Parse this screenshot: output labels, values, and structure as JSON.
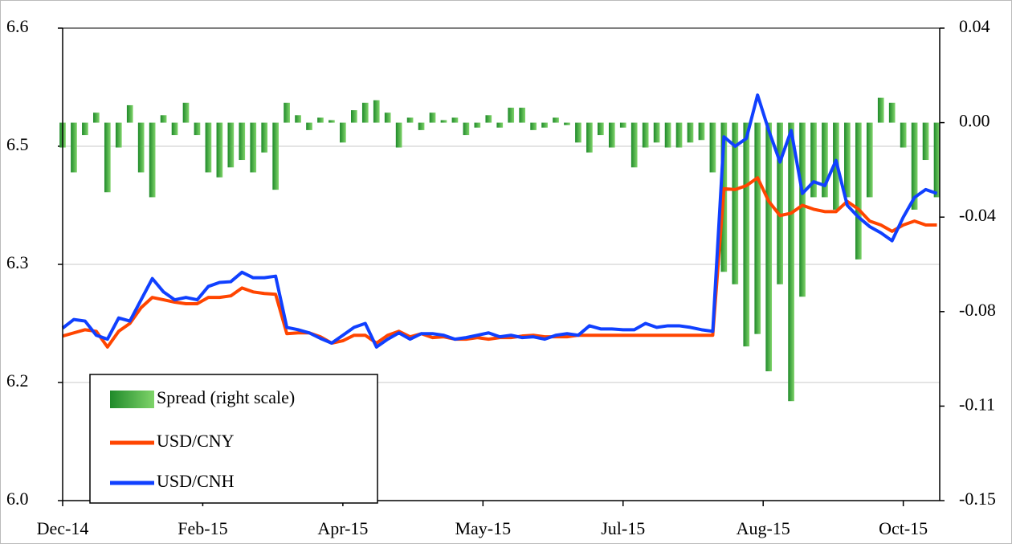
{
  "chart_data": {
    "type": "combo",
    "x": [
      0,
      4,
      8,
      12,
      16,
      20,
      24,
      28,
      32,
      36,
      40,
      44,
      48,
      52,
      56,
      60,
      64,
      68,
      72,
      76,
      80,
      84,
      88,
      92,
      96,
      100,
      104,
      108,
      112,
      116,
      120,
      124,
      128,
      132,
      136,
      140,
      144,
      148,
      152,
      156,
      160,
      164,
      168,
      172,
      176,
      180,
      184,
      188,
      192,
      196,
      200,
      204,
      208,
      212,
      216,
      220,
      224,
      228,
      232,
      236,
      240,
      244,
      248,
      252,
      256,
      260,
      264,
      268,
      272,
      276,
      280,
      284,
      288,
      292,
      296,
      300,
      304,
      308,
      312
    ],
    "xlim": [
      0,
      313
    ],
    "xticks": [
      {
        "value": 0,
        "label": "Dec-14"
      },
      {
        "value": 50,
        "label": "Feb-15"
      },
      {
        "value": 100,
        "label": "Apr-15"
      },
      {
        "value": 150,
        "label": "May-15"
      },
      {
        "value": 200,
        "label": "Jul-15"
      },
      {
        "value": 250,
        "label": "Aug-15"
      },
      {
        "value": 300,
        "label": "Oct-15"
      }
    ],
    "ylim": [
      6.0,
      6.6
    ],
    "yticks": [
      {
        "value": 6.0,
        "label": "6.0"
      },
      {
        "value": 6.15,
        "label": "6.2"
      },
      6.3,
      {
        "value": 6.45,
        "label": "6.5"
      },
      6.6
    ],
    "y2lim": [
      -0.152,
      0.038
    ],
    "y2ticks": [
      {
        "value": -0.152,
        "label": "-0.15"
      },
      {
        "value": -0.114,
        "label": "-0.11"
      },
      {
        "value": -0.076,
        "label": "-0.08"
      },
      {
        "value": -0.038,
        "label": "-0.04"
      },
      {
        "value": 0,
        "label": "0.00"
      },
      {
        "value": 0.038,
        "label": "0.04"
      }
    ],
    "grid": true,
    "legend": "lower left",
    "series": [
      {
        "name": "Spread (right scale)",
        "type": "bar",
        "axis": "y2",
        "color": "#3cae3c",
        "values": [
          -0.01,
          -0.02,
          -0.005,
          0.004,
          -0.028,
          -0.01,
          0.007,
          -0.02,
          -0.03,
          0.003,
          -0.005,
          0.008,
          -0.005,
          -0.02,
          -0.022,
          -0.018,
          -0.015,
          -0.02,
          -0.012,
          -0.027,
          0.008,
          0.003,
          -0.003,
          0.002,
          0.001,
          -0.008,
          0.005,
          0.008,
          0.009,
          0.004,
          -0.01,
          0.002,
          -0.003,
          0.004,
          0.001,
          0.002,
          -0.005,
          -0.002,
          0.003,
          -0.002,
          0.006,
          0.006,
          -0.003,
          -0.002,
          0.002,
          -0.001,
          -0.008,
          -0.012,
          -0.005,
          -0.01,
          -0.002,
          -0.018,
          -0.01,
          -0.008,
          -0.01,
          -0.01,
          -0.008,
          -0.007,
          -0.02,
          -0.06,
          -0.065,
          -0.09,
          -0.085,
          -0.1,
          -0.065,
          -0.112,
          -0.07,
          -0.03,
          -0.03,
          -0.035,
          -0.03,
          -0.055,
          -0.03,
          0.01,
          0.008,
          -0.01,
          -0.035,
          -0.015,
          -0.03
        ]
      },
      {
        "name": "USD/CNY",
        "type": "line",
        "color": "#ff4500",
        "values": [
          6.209,
          6.213,
          6.217,
          6.215,
          6.195,
          6.215,
          6.225,
          6.245,
          6.258,
          6.255,
          6.252,
          6.25,
          6.25,
          6.258,
          6.258,
          6.26,
          6.27,
          6.265,
          6.263,
          6.262,
          6.212,
          6.213,
          6.213,
          6.208,
          6.2,
          6.203,
          6.21,
          6.21,
          6.2,
          6.21,
          6.215,
          6.208,
          6.212,
          6.207,
          6.208,
          6.205,
          6.205,
          6.207,
          6.205,
          6.207,
          6.207,
          6.209,
          6.21,
          6.208,
          6.208,
          6.208,
          6.21,
          6.21,
          6.21,
          6.21,
          6.21,
          6.21,
          6.21,
          6.21,
          6.21,
          6.21,
          6.21,
          6.21,
          6.21,
          6.396,
          6.395,
          6.4,
          6.41,
          6.38,
          6.362,
          6.365,
          6.375,
          6.37,
          6.367,
          6.367,
          6.38,
          6.37,
          6.355,
          6.35,
          6.342,
          6.35,
          6.355,
          6.35,
          6.35
        ]
      },
      {
        "name": "USD/CNH",
        "type": "line",
        "color": "#1040ff",
        "values": [
          6.219,
          6.23,
          6.228,
          6.21,
          6.205,
          6.232,
          6.228,
          6.255,
          6.282,
          6.265,
          6.255,
          6.258,
          6.255,
          6.272,
          6.277,
          6.278,
          6.29,
          6.283,
          6.283,
          6.285,
          6.22,
          6.217,
          6.213,
          6.206,
          6.2,
          6.21,
          6.22,
          6.225,
          6.195,
          6.205,
          6.213,
          6.205,
          6.212,
          6.212,
          6.21,
          6.205,
          6.207,
          6.21,
          6.213,
          6.208,
          6.21,
          6.207,
          6.208,
          6.205,
          6.21,
          6.212,
          6.21,
          6.222,
          6.218,
          6.218,
          6.217,
          6.217,
          6.225,
          6.22,
          6.222,
          6.222,
          6.22,
          6.217,
          6.215,
          6.462,
          6.45,
          6.46,
          6.515,
          6.47,
          6.43,
          6.47,
          6.39,
          6.405,
          6.4,
          6.432,
          6.375,
          6.36,
          6.348,
          6.34,
          6.33,
          6.36,
          6.385,
          6.395,
          6.39
        ]
      }
    ]
  }
}
